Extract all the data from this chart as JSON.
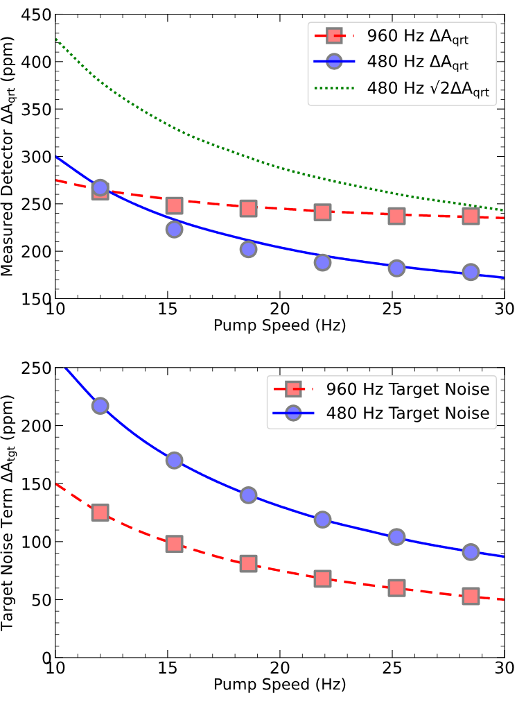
{
  "chart_data": [
    {
      "type": "line",
      "xlabel": "Pump Speed (Hz)",
      "ylabel": "Measured Detector ΔA$_{qrt}$ (ppm)",
      "xlim": [
        10,
        30
      ],
      "xticks": [
        10,
        15,
        20,
        25,
        30
      ],
      "ylim": [
        150,
        450
      ],
      "yticks": [
        150,
        200,
        250,
        300,
        350,
        400,
        450
      ],
      "grid": false,
      "legend": "top right",
      "series": [
        {
          "type": "scatter",
          "marker": "square",
          "color": "#ff7f7f",
          "x": [
            12.0,
            15.3,
            18.6,
            21.9,
            25.2,
            28.5
          ],
          "values": [
            263,
            248,
            245,
            241,
            237,
            237
          ]
        },
        {
          "name": "960 Hz ΔA$_{qrt}$",
          "marker": "none",
          "line_style": "dashed",
          "color": "#ff0000",
          "x": [
            10,
            12,
            14,
            16,
            18,
            20,
            22,
            24,
            26,
            28,
            30
          ],
          "values": [
            275,
            265,
            258,
            252.5,
            248,
            245,
            242,
            240,
            238,
            236.5,
            235
          ]
        },
        {
          "type": "scatter",
          "marker": "circle",
          "color": "#7f7fff",
          "x": [
            12.0,
            15.3,
            18.6,
            21.9,
            25.2,
            28.5
          ],
          "values": [
            267,
            223,
            202,
            188,
            182,
            178
          ]
        },
        {
          "name": "480 Hz ΔA$_{qrt}$",
          "marker": "none",
          "line_style": "solid",
          "color": "#0000ff",
          "x": [
            10,
            12,
            14,
            16,
            18,
            20,
            22,
            24,
            26,
            28,
            30
          ],
          "values": [
            300,
            268,
            245,
            228,
            215,
            204,
            195,
            188,
            182,
            177,
            172
          ]
        },
        {
          "name": "480 Hz √2ΔA$_{qrt}$",
          "marker": "none",
          "line_style": "dotted",
          "color": "#008000",
          "x": [
            10,
            12,
            14,
            16,
            18,
            20,
            22,
            24,
            26,
            28,
            30
          ],
          "values": [
            424,
            379,
            347,
            322,
            304,
            288,
            276,
            266,
            257,
            250,
            243
          ]
        }
      ]
    },
    {
      "type": "line",
      "xlabel": "Pump Speed (Hz)",
      "ylabel": "Target Noise Term ΔA$_{tgt}$ (ppm)",
      "xlim": [
        10,
        30
      ],
      "xticks": [
        10,
        15,
        20,
        25,
        30
      ],
      "ylim": [
        0,
        250
      ],
      "yticks": [
        0,
        50,
        100,
        150,
        200,
        250
      ],
      "grid": false,
      "legend": "top right",
      "series": [
        {
          "type": "scatter",
          "marker": "square",
          "color": "#ff7f7f",
          "x": [
            12.0,
            15.3,
            18.6,
            21.9,
            25.2,
            28.5
          ],
          "values": [
            125,
            98,
            81,
            68,
            60,
            53
          ]
        },
        {
          "name": "960 Hz Target Noise",
          "marker": "none",
          "line_style": "dashed",
          "color": "#ff0000",
          "x": [
            10,
            12,
            14,
            16,
            18,
            20,
            22,
            24,
            26,
            28,
            30
          ],
          "values": [
            150,
            125,
            107,
            94,
            83,
            75,
            68,
            62.5,
            58,
            53.5,
            50
          ]
        },
        {
          "type": "scatter",
          "marker": "circle",
          "color": "#7f7fff",
          "x": [
            12.0,
            15.3,
            18.6,
            21.9,
            25.2,
            28.5
          ],
          "values": [
            217,
            170,
            140,
            119,
            104,
            91
          ]
        },
        {
          "name": "480 Hz Target Noise",
          "marker": "none",
          "line_style": "solid",
          "color": "#0000ff",
          "x": [
            10.44,
            12,
            14,
            16,
            18,
            20,
            22,
            24,
            26,
            28,
            30
          ],
          "values": [
            250,
            217.5,
            186,
            163,
            145,
            130.5,
            118.5,
            109,
            100,
            93,
            87
          ]
        }
      ]
    }
  ]
}
